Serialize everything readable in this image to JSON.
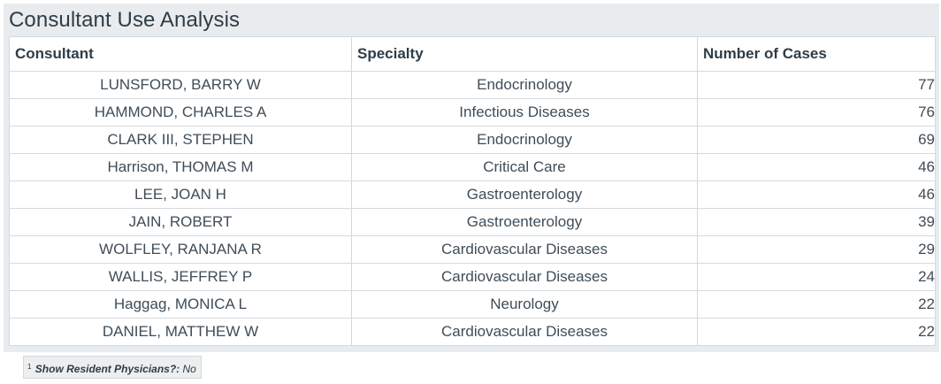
{
  "title": "Consultant Use Analysis",
  "table": {
    "columns": [
      "Consultant",
      "Specialty",
      "Number of Cases"
    ],
    "rows": [
      {
        "consultant": "LUNSFORD, BARRY W",
        "specialty": "Endocrinology",
        "cases": "77"
      },
      {
        "consultant": "HAMMOND, CHARLES A",
        "specialty": "Infectious Diseases",
        "cases": "76"
      },
      {
        "consultant": "CLARK III, STEPHEN",
        "specialty": "Endocrinology",
        "cases": "69"
      },
      {
        "consultant": "Harrison, THOMAS M",
        "specialty": "Critical Care",
        "cases": "46"
      },
      {
        "consultant": "LEE, JOAN H",
        "specialty": "Gastroenterology",
        "cases": "46"
      },
      {
        "consultant": "JAIN, ROBERT",
        "specialty": "Gastroenterology",
        "cases": "39"
      },
      {
        "consultant": "WOLFLEY, RANJANA R",
        "specialty": "Cardiovascular Diseases",
        "cases": "29"
      },
      {
        "consultant": "WALLIS, JEFFREY P",
        "specialty": "Cardiovascular Diseases",
        "cases": "24"
      },
      {
        "consultant": "Haggag, MONICA L",
        "specialty": "Neurology",
        "cases": "22"
      },
      {
        "consultant": "DANIEL, MATTHEW W",
        "specialty": "Cardiovascular Diseases",
        "cases": "22"
      }
    ]
  },
  "footnote": {
    "marker": "1",
    "label": "Show Resident Physicians?:",
    "value": "No"
  }
}
